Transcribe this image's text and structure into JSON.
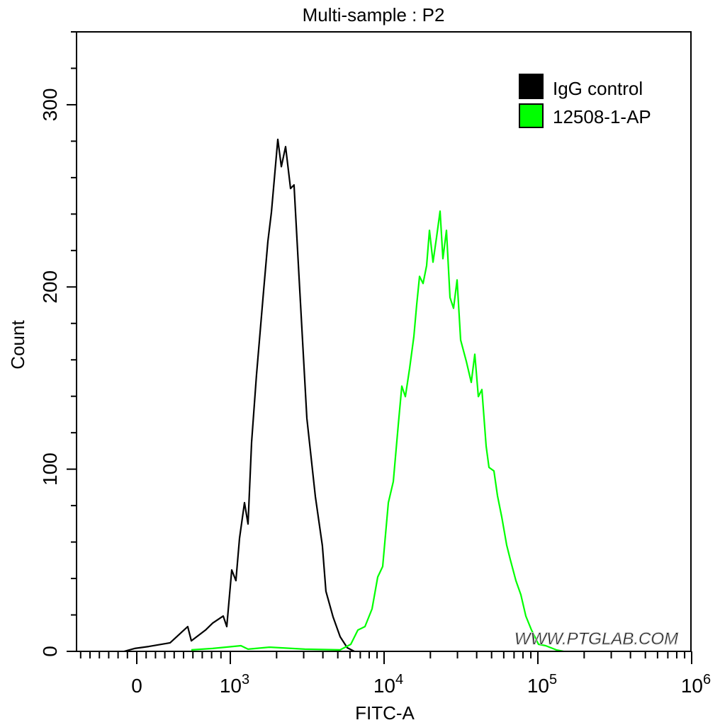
{
  "chart_data": {
    "type": "line",
    "title": "Multi-sample : P2",
    "xlabel": "FITC-A",
    "ylabel": "Count",
    "x_scale": "biexponential",
    "xlim": [
      -640,
      1000000
    ],
    "ylim": [
      0,
      340
    ],
    "x_ticks": [
      {
        "value": 0,
        "base": "0",
        "exp": ""
      },
      {
        "value": 1000,
        "base": "10",
        "exp": "3"
      },
      {
        "value": 10000,
        "base": "10",
        "exp": "4"
      },
      {
        "value": 100000,
        "base": "10",
        "exp": "5"
      },
      {
        "value": 1000000,
        "base": "10",
        "exp": "6"
      }
    ],
    "y_ticks": [
      "0",
      "100",
      "200",
      "300"
    ],
    "grid": false,
    "legend_position": "top-right",
    "watermark": "WWW.PTGLAB.COM",
    "series": [
      {
        "name": "IgG control",
        "color": "#000000",
        "points": [
          [
            -136,
            0
          ],
          [
            -23,
            1.6
          ],
          [
            129,
            2.7
          ],
          [
            356,
            4.7
          ],
          [
            545,
            13.6
          ],
          [
            583,
            5.8
          ],
          [
            735,
            11.7
          ],
          [
            811,
            15.5
          ],
          [
            924,
            19.4
          ],
          [
            962,
            13.6
          ],
          [
            1021,
            44.7
          ],
          [
            1088,
            38.8
          ],
          [
            1148,
            62.1
          ],
          [
            1236,
            81.6
          ],
          [
            1304,
            69.9
          ],
          [
            1375,
            114.6
          ],
          [
            1480,
            151.5
          ],
          [
            1646,
            198
          ],
          [
            1754,
            225
          ],
          [
            1851,
            241
          ],
          [
            2036,
            281
          ],
          [
            2146,
            266
          ],
          [
            2288,
            277
          ],
          [
            2465,
            254
          ],
          [
            2596,
            256
          ],
          [
            2797,
            206
          ],
          [
            3146,
            128
          ],
          [
            3573,
            85
          ],
          [
            3970,
            58
          ],
          [
            4184,
            33
          ],
          [
            4654,
            19
          ],
          [
            5177,
            8
          ],
          [
            5758,
            2
          ],
          [
            6404,
            0
          ]
        ]
      },
      {
        "name": "12508-1-AP",
        "color": "#00ff00",
        "points": [
          [
            583,
            0.8
          ],
          [
            811,
            1.6
          ],
          [
            1172,
            3.1
          ],
          [
            1304,
            1.2
          ],
          [
            1793,
            2.3
          ],
          [
            3050,
            1.2
          ],
          [
            5180,
            0.8
          ],
          [
            6070,
            3.9
          ],
          [
            6750,
            11.7
          ],
          [
            7510,
            13.6
          ],
          [
            8350,
            23.3
          ],
          [
            9090,
            40.8
          ],
          [
            9790,
            46.6
          ],
          [
            10660,
            81.6
          ],
          [
            11480,
            93.2
          ],
          [
            12370,
            124.3
          ],
          [
            13040,
            145.6
          ],
          [
            13750,
            139.8
          ],
          [
            14650,
            155.3
          ],
          [
            15620,
            172.8
          ],
          [
            16290,
            190.3
          ],
          [
            17000,
            205.8
          ],
          [
            17930,
            201.9
          ],
          [
            18900,
            211.7
          ],
          [
            19720,
            231.1
          ],
          [
            20800,
            213.6
          ],
          [
            21930,
            227.2
          ],
          [
            23120,
            241.6
          ],
          [
            24120,
            215.5
          ],
          [
            25440,
            231.1
          ],
          [
            26830,
            194.2
          ],
          [
            28290,
            188.3
          ],
          [
            29840,
            203.9
          ],
          [
            31460,
            170.9
          ],
          [
            34240,
            159.2
          ],
          [
            36880,
            147.6
          ],
          [
            38900,
            163.1
          ],
          [
            41020,
            139.8
          ],
          [
            43250,
            143.7
          ],
          [
            46090,
            112.6
          ],
          [
            48090,
            101.0
          ],
          [
            51800,
            99.0
          ],
          [
            54600,
            85.4
          ],
          [
            58200,
            73.8
          ],
          [
            62700,
            58.3
          ],
          [
            66100,
            50.5
          ],
          [
            71960,
            38.8
          ],
          [
            77500,
            31.1
          ],
          [
            83500,
            19.4
          ],
          [
            90900,
            11.7
          ],
          [
            101000,
            3.9
          ],
          [
            112400,
            3.1
          ],
          [
            131800,
            0.8
          ],
          [
            146600,
            0
          ]
        ]
      }
    ]
  }
}
